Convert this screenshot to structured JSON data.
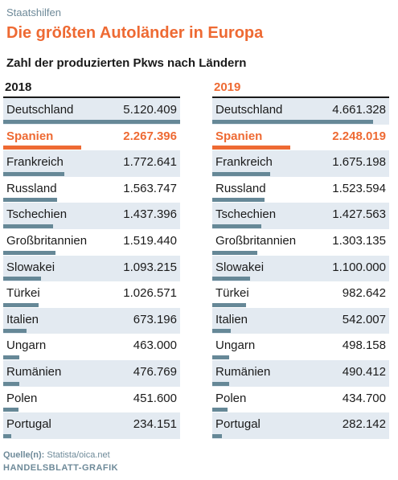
{
  "kicker": "Staatshilfen",
  "title": "Die größten Autoländer in Europa",
  "subtitle": "Zahl der produzierten Pkws nach Ländern",
  "source_label": "Quelle(n):",
  "source_text": "Statista/oica.net",
  "credit": "HANDELSBLATT-GRAFIK",
  "colors": {
    "accent": "#ee6a33",
    "bar": "#668897",
    "shade": "#e3eaf1"
  },
  "chart_data": [
    {
      "type": "bar",
      "title": "2018",
      "highlight": "Spanien",
      "categories": [
        "Deutschland",
        "Spanien",
        "Frankreich",
        "Russland",
        "Tschechien",
        "Großbritannien",
        "Slowakei",
        "Türkei",
        "Italien",
        "Ungarn",
        "Rumänien",
        "Polen",
        "Portugal"
      ],
      "values": [
        5120409,
        2267396,
        1772641,
        1563747,
        1437396,
        1519440,
        1093215,
        1026571,
        673196,
        463000,
        476769,
        451600,
        234151
      ],
      "labels": [
        "5.120.409",
        "2.267.396",
        "1.772.641",
        "1.563.747",
        "1.437.396",
        "1.519.440",
        "1.093.215",
        "1.026.571",
        "673.196",
        "463.000",
        "476.769",
        "451.600",
        "234.151"
      ]
    },
    {
      "type": "bar",
      "title": "2019",
      "highlight": "Spanien",
      "categories": [
        "Deutschland",
        "Spanien",
        "Frankreich",
        "Russland",
        "Tschechien",
        "Großbritannien",
        "Slowakei",
        "Türkei",
        "Italien",
        "Ungarn",
        "Rumänien",
        "Polen",
        "Portugal"
      ],
      "values": [
        4661328,
        2248019,
        1675198,
        1523594,
        1427563,
        1303135,
        1100000,
        982642,
        542007,
        498158,
        490412,
        434700,
        282142
      ],
      "labels": [
        "4.661.328",
        "2.248.019",
        "1.675.198",
        "1.523.594",
        "1.427.563",
        "1.303.135",
        "1.100.000",
        "982.642",
        "542.007",
        "498.158",
        "490.412",
        "434.700",
        "282.142"
      ]
    }
  ]
}
